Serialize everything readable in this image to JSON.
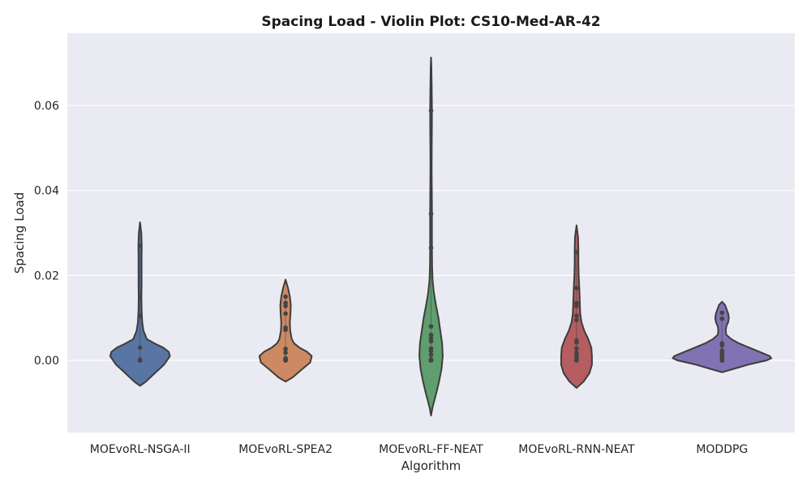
{
  "chart_data": {
    "type": "violin",
    "title": "Spacing Load - Violin Plot: CS10-Med-AR-42",
    "xlabel": "Algorithm",
    "ylabel": "Spacing Load",
    "ylim": [
      -0.017,
      0.077
    ],
    "yticks": [
      0.0,
      0.02,
      0.04,
      0.06
    ],
    "ytick_labels": [
      "0.00",
      "0.02",
      "0.04",
      "0.06"
    ],
    "grid": true,
    "background": "#eaeaf2",
    "grid_color": "#ffffff",
    "edge_color": "#3d3d3d",
    "categories": [
      "MOEvoRL-NSGA-II",
      "MOEvoRL-SPEA2",
      "MOEvoRL-FF-NEAT",
      "MOEvoRL-RNN-NEAT",
      "MODDPG"
    ],
    "series": [
      {
        "category": "MOEvoRL-NSGA-II",
        "color": "#5875a4",
        "points": [
          0.0,
          0.0,
          0.0,
          0.0,
          0.0,
          0.0,
          0.0001,
          0.0001,
          0.0002,
          0.003,
          0.0105,
          0.015,
          0.027
        ],
        "profile": [
          [
            -0.006,
            0.0
          ],
          [
            -0.005,
            0.19
          ],
          [
            -0.003,
            0.48
          ],
          [
            -0.001,
            0.78
          ],
          [
            0.001,
            0.97
          ],
          [
            0.002,
            0.93
          ],
          [
            0.003,
            0.75
          ],
          [
            0.004,
            0.47
          ],
          [
            0.005,
            0.22
          ],
          [
            0.007,
            0.11
          ],
          [
            0.009,
            0.07
          ],
          [
            0.012,
            0.05
          ],
          [
            0.015,
            0.045
          ],
          [
            0.018,
            0.05
          ],
          [
            0.021,
            0.05
          ],
          [
            0.024,
            0.05
          ],
          [
            0.027,
            0.055
          ],
          [
            0.03,
            0.04
          ],
          [
            0.0325,
            0.0
          ]
        ]
      },
      {
        "category": "MOEvoRL-SPEA2",
        "color": "#cc8963",
        "points": [
          0.0,
          0.0,
          0.0,
          0.0002,
          0.0005,
          0.0018,
          0.0027,
          0.0072,
          0.0077,
          0.011,
          0.0128,
          0.0135,
          0.015
        ],
        "profile": [
          [
            -0.005,
            0.0
          ],
          [
            -0.004,
            0.23
          ],
          [
            -0.002,
            0.55
          ],
          [
            -0.0005,
            0.8
          ],
          [
            0.001,
            0.85
          ],
          [
            0.002,
            0.7
          ],
          [
            0.003,
            0.45
          ],
          [
            0.004,
            0.28
          ],
          [
            0.005,
            0.2
          ],
          [
            0.007,
            0.15
          ],
          [
            0.009,
            0.14
          ],
          [
            0.011,
            0.16
          ],
          [
            0.013,
            0.17
          ],
          [
            0.015,
            0.14
          ],
          [
            0.017,
            0.08
          ],
          [
            0.019,
            0.0
          ]
        ]
      },
      {
        "category": "MOEvoRL-FF-NEAT",
        "color": "#5f9e6e",
        "points": [
          0.0,
          0.0,
          0.0,
          0.0002,
          0.0013,
          0.0022,
          0.0028,
          0.0045,
          0.0052,
          0.006,
          0.008,
          0.0265,
          0.0345,
          0.0588
        ],
        "profile": [
          [
            -0.013,
            0.0
          ],
          [
            -0.011,
            0.05
          ],
          [
            -0.008,
            0.16
          ],
          [
            -0.005,
            0.26
          ],
          [
            -0.002,
            0.34
          ],
          [
            0.001,
            0.38
          ],
          [
            0.004,
            0.36
          ],
          [
            0.007,
            0.3
          ],
          [
            0.01,
            0.24
          ],
          [
            0.013,
            0.16
          ],
          [
            0.016,
            0.09
          ],
          [
            0.019,
            0.05
          ],
          [
            0.022,
            0.035
          ],
          [
            0.026,
            0.03
          ],
          [
            0.03,
            0.03
          ],
          [
            0.035,
            0.03
          ],
          [
            0.04,
            0.025
          ],
          [
            0.045,
            0.02
          ],
          [
            0.05,
            0.022
          ],
          [
            0.055,
            0.028
          ],
          [
            0.06,
            0.028
          ],
          [
            0.065,
            0.02
          ],
          [
            0.069,
            0.012
          ],
          [
            0.0713,
            0.0
          ]
        ]
      },
      {
        "category": "MOEvoRL-RNN-NEAT",
        "color": "#b55d60",
        "points": [
          0.0,
          0.0,
          0.0003,
          0.001,
          0.0018,
          0.0028,
          0.0042,
          0.0047,
          0.0095,
          0.0105,
          0.0128,
          0.0135,
          0.017,
          0.0255
        ],
        "profile": [
          [
            -0.0065,
            0.0
          ],
          [
            -0.005,
            0.23
          ],
          [
            -0.003,
            0.42
          ],
          [
            -0.001,
            0.5
          ],
          [
            0.001,
            0.5
          ],
          [
            0.003,
            0.48
          ],
          [
            0.005,
            0.38
          ],
          [
            0.007,
            0.25
          ],
          [
            0.009,
            0.16
          ],
          [
            0.011,
            0.12
          ],
          [
            0.013,
            0.11
          ],
          [
            0.015,
            0.1
          ],
          [
            0.017,
            0.09
          ],
          [
            0.02,
            0.07
          ],
          [
            0.023,
            0.06
          ],
          [
            0.026,
            0.06
          ],
          [
            0.029,
            0.05
          ],
          [
            0.0318,
            0.0
          ]
        ]
      },
      {
        "category": "MODDPG",
        "color": "#8172b3",
        "points": [
          0.0,
          0.0,
          0.0,
          0.0002,
          0.0004,
          0.0006,
          0.001,
          0.0015,
          0.002,
          0.0023,
          0.0035,
          0.004,
          0.0098,
          0.0112
        ],
        "profile": [
          [
            -0.0028,
            0.0
          ],
          [
            -0.002,
            0.38
          ],
          [
            -0.001,
            0.85
          ],
          [
            0.0,
            1.45
          ],
          [
            0.0005,
            1.6
          ],
          [
            0.001,
            1.55
          ],
          [
            0.002,
            1.22
          ],
          [
            0.003,
            0.88
          ],
          [
            0.004,
            0.55
          ],
          [
            0.005,
            0.3
          ],
          [
            0.006,
            0.14
          ],
          [
            0.007,
            0.12
          ],
          [
            0.008,
            0.14
          ],
          [
            0.009,
            0.2
          ],
          [
            0.01,
            0.22
          ],
          [
            0.011,
            0.2
          ],
          [
            0.012,
            0.15
          ],
          [
            0.013,
            0.1
          ],
          [
            0.0138,
            0.0
          ]
        ]
      }
    ]
  }
}
